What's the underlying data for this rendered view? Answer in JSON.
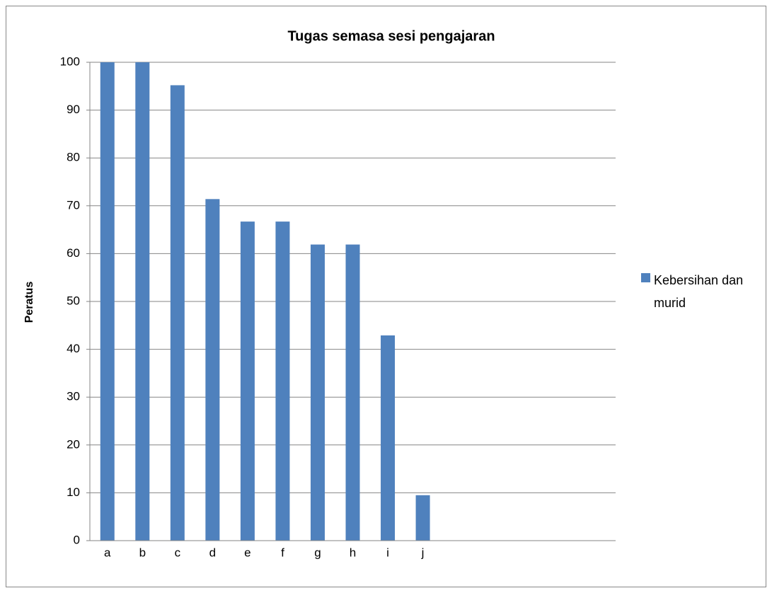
{
  "chart_data": {
    "type": "bar",
    "title": "Tugas semasa sesi pengajaran",
    "y_label": "Peratus",
    "categories": [
      "a",
      "b",
      "c",
      "d",
      "e",
      "f",
      "g",
      "h",
      "i",
      "j",
      null,
      null,
      null,
      null,
      null
    ],
    "series": [
      {
        "name": "Kebersihan dan murid",
        "color": "#4f81bd",
        "values": [
          100,
          100,
          95.2,
          71.4,
          66.7,
          66.7,
          61.9,
          61.9,
          42.9,
          9.5,
          null,
          null,
          null,
          null,
          null
        ]
      }
    ],
    "ylim": [
      0,
      100
    ],
    "yticks": [
      0,
      10,
      20,
      30,
      40,
      50,
      60,
      70,
      80,
      90,
      100
    ],
    "grid": true,
    "legend": "right"
  }
}
